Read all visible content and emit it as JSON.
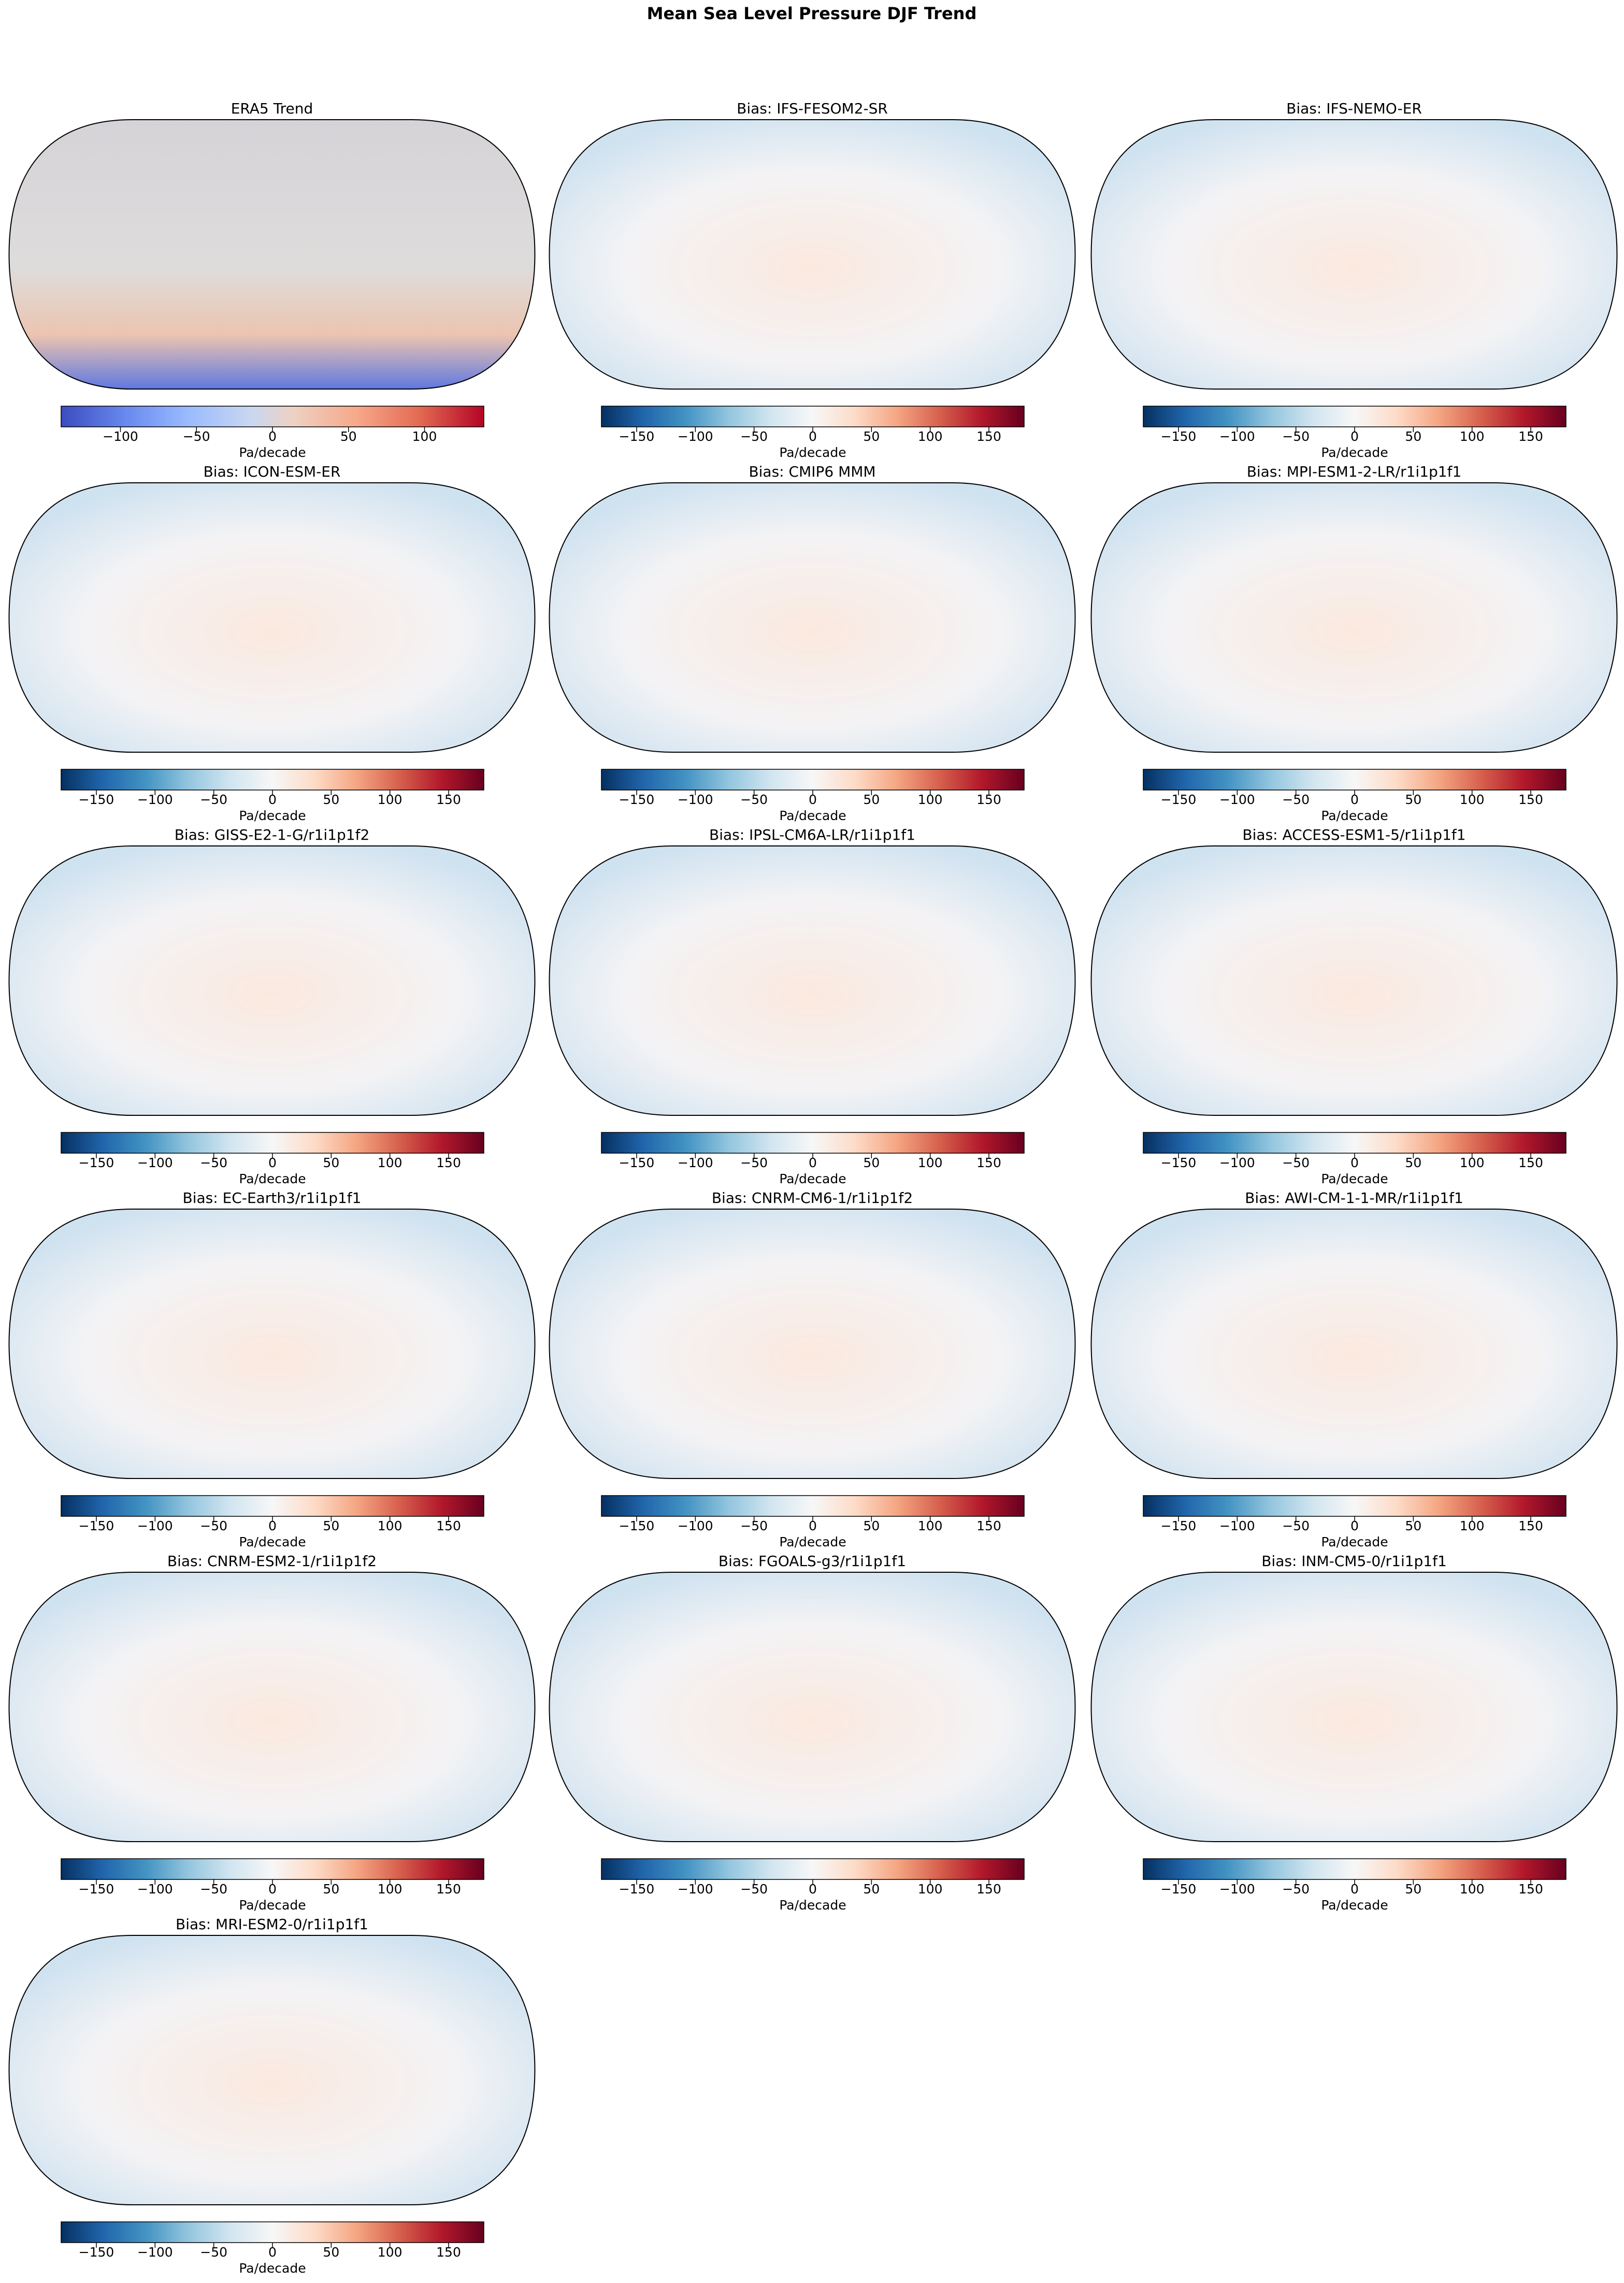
{
  "title": "Mean Sea Level Pressure DJF Trend",
  "chart_data": [
    {
      "type": "map",
      "title": "ERA5 Trend",
      "colormap": "coolwarm",
      "colorbar_label": "Pa/decade",
      "clim": [
        -139,
        139
      ],
      "cticks": [
        {
          "value": -100,
          "label": "−100"
        },
        {
          "value": -50,
          "label": "−50"
        },
        0,
        50,
        100
      ]
    },
    {
      "type": "map",
      "title": "Bias: IFS-FESOM2-SR",
      "colormap": "RdBu_r",
      "colorbar_label": "Pa/decade",
      "clim": [
        -180,
        180
      ],
      "cticks": [
        {
          "value": -150,
          "label": "−150"
        },
        {
          "value": -100,
          "label": "−100"
        },
        {
          "value": -50,
          "label": "−50"
        },
        0,
        50,
        100,
        150
      ]
    },
    {
      "type": "map",
      "title": "Bias: IFS-NEMO-ER",
      "colormap": "RdBu_r",
      "colorbar_label": "Pa/decade",
      "clim": [
        -180,
        180
      ],
      "cticks": [
        {
          "value": -150,
          "label": "−150"
        },
        {
          "value": -100,
          "label": "−100"
        },
        {
          "value": -50,
          "label": "−50"
        },
        0,
        50,
        100,
        150
      ]
    },
    {
      "type": "map",
      "title": "Bias: ICON-ESM-ER",
      "colormap": "RdBu_r",
      "colorbar_label": "Pa/decade",
      "clim": [
        -180,
        180
      ],
      "cticks": [
        {
          "value": -150,
          "label": "−150"
        },
        {
          "value": -100,
          "label": "−100"
        },
        {
          "value": -50,
          "label": "−50"
        },
        0,
        50,
        100,
        150
      ]
    },
    {
      "type": "map",
      "title": "Bias: CMIP6 MMM",
      "colormap": "RdBu_r",
      "colorbar_label": "Pa/decade",
      "clim": [
        -180,
        180
      ],
      "cticks": [
        {
          "value": -150,
          "label": "−150"
        },
        {
          "value": -100,
          "label": "−100"
        },
        {
          "value": -50,
          "label": "−50"
        },
        0,
        50,
        100,
        150
      ]
    },
    {
      "type": "map",
      "title": "Bias: MPI-ESM1-2-LR/r1i1p1f1",
      "colormap": "RdBu_r",
      "colorbar_label": "Pa/decade",
      "clim": [
        -180,
        180
      ],
      "cticks": [
        {
          "value": -150,
          "label": "−150"
        },
        {
          "value": -100,
          "label": "−100"
        },
        {
          "value": -50,
          "label": "−50"
        },
        0,
        50,
        100,
        150
      ]
    },
    {
      "type": "map",
      "title": "Bias: GISS-E2-1-G/r1i1p1f2",
      "colormap": "RdBu_r",
      "colorbar_label": "Pa/decade",
      "clim": [
        -180,
        180
      ],
      "cticks": [
        {
          "value": -150,
          "label": "−150"
        },
        {
          "value": -100,
          "label": "−100"
        },
        {
          "value": -50,
          "label": "−50"
        },
        0,
        50,
        100,
        150
      ]
    },
    {
      "type": "map",
      "title": "Bias: IPSL-CM6A-LR/r1i1p1f1",
      "colormap": "RdBu_r",
      "colorbar_label": "Pa/decade",
      "clim": [
        -180,
        180
      ],
      "cticks": [
        {
          "value": -150,
          "label": "−150"
        },
        {
          "value": -100,
          "label": "−100"
        },
        {
          "value": -50,
          "label": "−50"
        },
        0,
        50,
        100,
        150
      ]
    },
    {
      "type": "map",
      "title": "Bias: ACCESS-ESM1-5/r1i1p1f1",
      "colormap": "RdBu_r",
      "colorbar_label": "Pa/decade",
      "clim": [
        -180,
        180
      ],
      "cticks": [
        {
          "value": -150,
          "label": "−150"
        },
        {
          "value": -100,
          "label": "−100"
        },
        {
          "value": -50,
          "label": "−50"
        },
        0,
        50,
        100,
        150
      ]
    },
    {
      "type": "map",
      "title": "Bias: EC-Earth3/r1i1p1f1",
      "colormap": "RdBu_r",
      "colorbar_label": "Pa/decade",
      "clim": [
        -180,
        180
      ],
      "cticks": [
        {
          "value": -150,
          "label": "−150"
        },
        {
          "value": -100,
          "label": "−100"
        },
        {
          "value": -50,
          "label": "−50"
        },
        0,
        50,
        100,
        150
      ]
    },
    {
      "type": "map",
      "title": "Bias: CNRM-CM6-1/r1i1p1f2",
      "colormap": "RdBu_r",
      "colorbar_label": "Pa/decade",
      "clim": [
        -180,
        180
      ],
      "cticks": [
        {
          "value": -150,
          "label": "−150"
        },
        {
          "value": -100,
          "label": "−100"
        },
        {
          "value": -50,
          "label": "−50"
        },
        0,
        50,
        100,
        150
      ]
    },
    {
      "type": "map",
      "title": "Bias: AWI-CM-1-1-MR/r1i1p1f1",
      "colormap": "RdBu_r",
      "colorbar_label": "Pa/decade",
      "clim": [
        -180,
        180
      ],
      "cticks": [
        {
          "value": -150,
          "label": "−150"
        },
        {
          "value": -100,
          "label": "−100"
        },
        {
          "value": -50,
          "label": "−50"
        },
        0,
        50,
        100,
        150
      ]
    },
    {
      "type": "map",
      "title": "Bias: CNRM-ESM2-1/r1i1p1f2",
      "colormap": "RdBu_r",
      "colorbar_label": "Pa/decade",
      "clim": [
        -180,
        180
      ],
      "cticks": [
        {
          "value": -150,
          "label": "−150"
        },
        {
          "value": -100,
          "label": "−100"
        },
        {
          "value": -50,
          "label": "−50"
        },
        0,
        50,
        100,
        150
      ]
    },
    {
      "type": "map",
      "title": "Bias: FGOALS-g3/r1i1p1f1",
      "colormap": "RdBu_r",
      "colorbar_label": "Pa/decade",
      "clim": [
        -180,
        180
      ],
      "cticks": [
        {
          "value": -150,
          "label": "−150"
        },
        {
          "value": -100,
          "label": "−100"
        },
        {
          "value": -50,
          "label": "−50"
        },
        0,
        50,
        100,
        150
      ]
    },
    {
      "type": "map",
      "title": "Bias: INM-CM5-0/r1i1p1f1",
      "colormap": "RdBu_r",
      "colorbar_label": "Pa/decade",
      "clim": [
        -180,
        180
      ],
      "cticks": [
        {
          "value": -150,
          "label": "−150"
        },
        {
          "value": -100,
          "label": "−100"
        },
        {
          "value": -50,
          "label": "−50"
        },
        0,
        50,
        100,
        150
      ]
    },
    {
      "type": "map",
      "title": "Bias: MRI-ESM2-0/r1i1p1f1",
      "colormap": "RdBu_r",
      "colorbar_label": "Pa/decade",
      "clim": [
        -180,
        180
      ],
      "cticks": [
        {
          "value": -150,
          "label": "−150"
        },
        {
          "value": -100,
          "label": "−100"
        },
        {
          "value": -50,
          "label": "−50"
        },
        0,
        50,
        100,
        150
      ]
    }
  ]
}
